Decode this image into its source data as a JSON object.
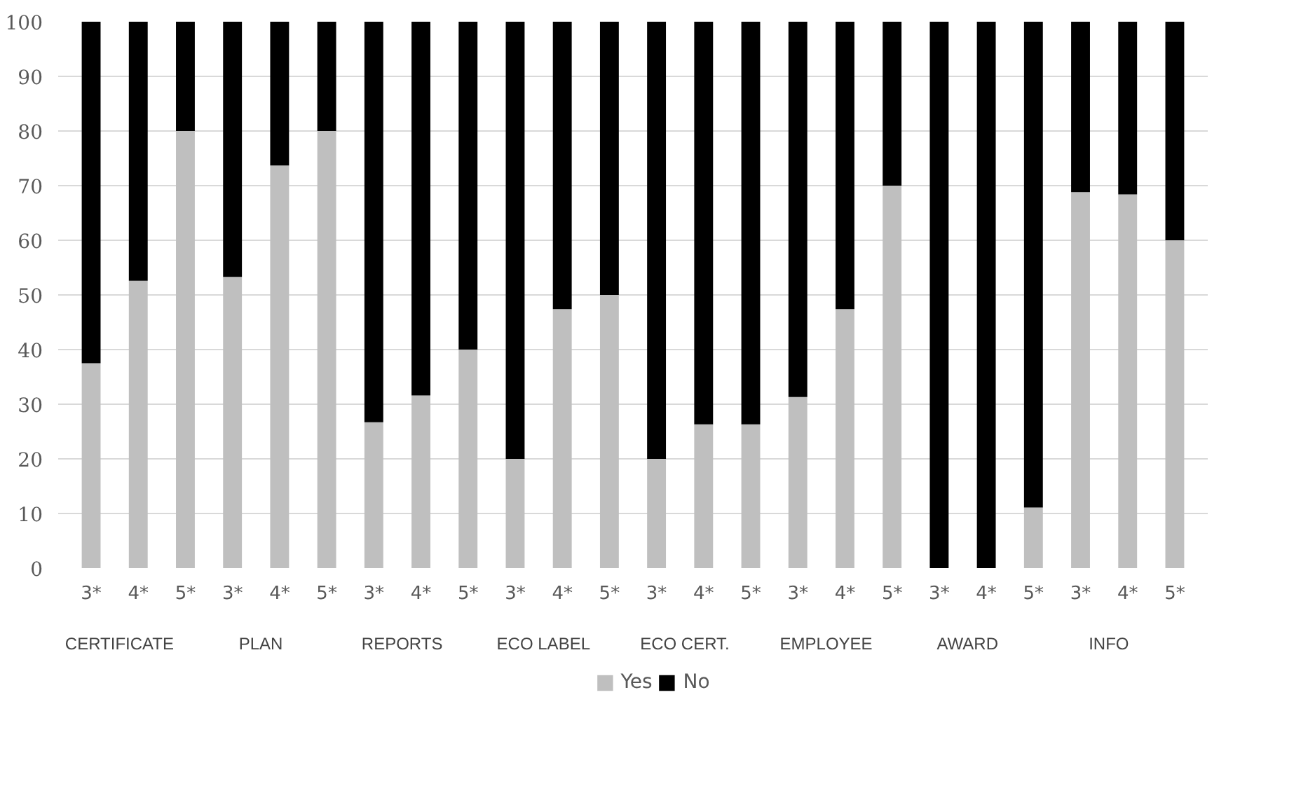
{
  "chart_data": {
    "type": "bar",
    "stacked": true,
    "categories": [
      "3*",
      "4*",
      "5*",
      "3*",
      "4*",
      "5*",
      "3*",
      "4*",
      "5*",
      "3*",
      "4*",
      "5*",
      "3*",
      "4*",
      "5*",
      "3*",
      "4*",
      "5*",
      "3*",
      "4*",
      "5*",
      "3*",
      "4*",
      "5*"
    ],
    "series": [
      {
        "name": "Yes",
        "color": "#bfbfbf",
        "values": [
          37.5,
          52.6,
          80,
          53.3,
          73.7,
          80,
          26.7,
          31.6,
          40,
          20,
          47.4,
          50,
          20,
          26.3,
          26.3,
          31.3,
          47.4,
          70,
          0,
          0,
          11.1,
          68.8,
          68.4,
          60
        ]
      },
      {
        "name": "No",
        "color": "#000000",
        "values": [
          62.5,
          47.4,
          20,
          46.7,
          26.3,
          20,
          73.3,
          68.4,
          60,
          80,
          52.6,
          50,
          80,
          73.7,
          73.7,
          68.7,
          52.6,
          30,
          100,
          100,
          88.9,
          31.2,
          31.6,
          40
        ]
      }
    ],
    "annotations": [
      "CERTIFICATE",
      "PLAN",
      "REPORTS",
      "ECO LABEL",
      "ECO CERT.",
      "EMPLOYEE",
      "AWARD",
      "INFO"
    ],
    "ylim": [
      0,
      100
    ],
    "yticks": [
      0,
      10,
      20,
      30,
      40,
      50,
      60,
      70,
      80,
      90,
      100
    ],
    "grid": "y",
    "legend": "bottom"
  }
}
